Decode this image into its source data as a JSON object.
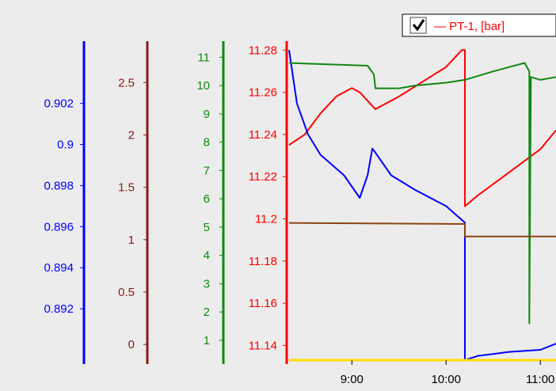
{
  "chart_data": {
    "type": "line",
    "legend": {
      "checked": true,
      "text": "— PT-1, [bar]",
      "color": "#ff0000",
      "placement": "top-right"
    },
    "x_axis": {
      "range": [
        "08:20",
        "11:10"
      ],
      "ticks": [
        "9:00",
        "10:00",
        "11:00"
      ]
    },
    "axes": [
      {
        "id": "blue",
        "color": "#0000ff",
        "range": [
          0.8895,
          0.9048
        ],
        "ticks": [
          0.892,
          0.894,
          0.896,
          0.898,
          0.9,
          0.902
        ],
        "tick_labels": [
          "0.892",
          "0.894",
          "0.896",
          "0.898",
          "0.9",
          "0.902"
        ]
      },
      {
        "id": "brown",
        "color": "#8b1a1a",
        "range": [
          -0.15,
          2.85
        ],
        "ticks": [
          0,
          0.5,
          1,
          1.5,
          2,
          2.5
        ],
        "tick_labels": [
          "0",
          "0.5",
          "1",
          "1.5",
          "2",
          "2.5"
        ]
      },
      {
        "id": "green",
        "color": "#118811",
        "range": [
          0.3,
          11.4
        ],
        "ticks": [
          1,
          2,
          3,
          4,
          5,
          6,
          7,
          8,
          9,
          10,
          11
        ],
        "tick_labels": [
          "1",
          "2",
          "3",
          "4",
          "5",
          "6",
          "7",
          "8",
          "9",
          "10",
          "11"
        ]
      },
      {
        "id": "red",
        "color": "#ff0000",
        "range": [
          11.133,
          11.282
        ],
        "ticks": [
          11.14,
          11.16,
          11.18,
          11.2,
          11.22,
          11.24,
          11.26,
          11.28
        ],
        "tick_labels": [
          "11.14",
          "11.16",
          "11.18",
          "11.2",
          "11.22",
          "11.24",
          "11.26",
          "11.28"
        ]
      }
    ],
    "series": [
      {
        "name": "PT-1, [bar]",
        "axis": "red",
        "color": "#ff0000",
        "points": [
          [
            "08:20",
            11.235
          ],
          [
            "08:30",
            11.24
          ],
          [
            "08:40",
            11.25
          ],
          [
            "08:50",
            11.258
          ],
          [
            "09:00",
            11.262
          ],
          [
            "09:05",
            11.26
          ],
          [
            "09:10",
            11.256
          ],
          [
            "09:15",
            11.252
          ],
          [
            "09:30",
            11.258
          ],
          [
            "09:45",
            11.265
          ],
          [
            "10:00",
            11.272
          ],
          [
            "10:10",
            11.28
          ],
          [
            "10:12",
            11.28
          ],
          [
            "10:12",
            11.206
          ],
          [
            "10:20",
            11.211
          ],
          [
            "10:40",
            11.222
          ],
          [
            "11:00",
            11.233
          ],
          [
            "11:10",
            11.242
          ]
        ]
      },
      {
        "axis": "blue",
        "color": "#0000ff",
        "points": [
          [
            "08:20",
            0.9046
          ],
          [
            "08:25",
            0.902
          ],
          [
            "08:32",
            0.9005
          ],
          [
            "08:40",
            0.8995
          ],
          [
            "08:55",
            0.8985
          ],
          [
            "09:05",
            0.8974
          ],
          [
            "09:10",
            0.8985
          ],
          [
            "09:13",
            0.8998
          ],
          [
            "09:15",
            0.8996
          ],
          [
            "09:25",
            0.8985
          ],
          [
            "09:40",
            0.8978
          ],
          [
            "10:00",
            0.897
          ],
          [
            "10:12",
            0.8962
          ],
          [
            "10:12",
            0.8895
          ],
          [
            "10:20",
            0.8897
          ],
          [
            "10:40",
            0.8899
          ],
          [
            "11:00",
            0.89
          ],
          [
            "11:10",
            0.8903
          ]
        ]
      },
      {
        "axis": "green",
        "color": "#118811",
        "points": [
          [
            "08:20",
            10.8
          ],
          [
            "09:10",
            10.7
          ],
          [
            "09:14",
            10.4
          ],
          [
            "09:15",
            9.9
          ],
          [
            "09:30",
            9.9
          ],
          [
            "09:40",
            10.0
          ],
          [
            "10:00",
            10.1
          ],
          [
            "10:12",
            10.2
          ],
          [
            "10:30",
            10.5
          ],
          [
            "10:50",
            10.8
          ],
          [
            "10:53",
            10.5
          ],
          [
            "10:53",
            1.6
          ],
          [
            "10:54",
            10.3
          ],
          [
            "11:00",
            10.2
          ],
          [
            "11:10",
            10.3
          ]
        ]
      },
      {
        "axis": "brown",
        "color": "#8b4513",
        "points": [
          [
            "08:20",
            1.16
          ],
          [
            "10:12",
            1.15
          ],
          [
            "10:12",
            1.03
          ],
          [
            "11:10",
            1.03
          ]
        ]
      },
      {
        "axis": "red",
        "color": "#ffdd00",
        "points": [
          [
            "08:20",
            11.133
          ],
          [
            "11:10",
            11.133
          ]
        ]
      }
    ]
  }
}
